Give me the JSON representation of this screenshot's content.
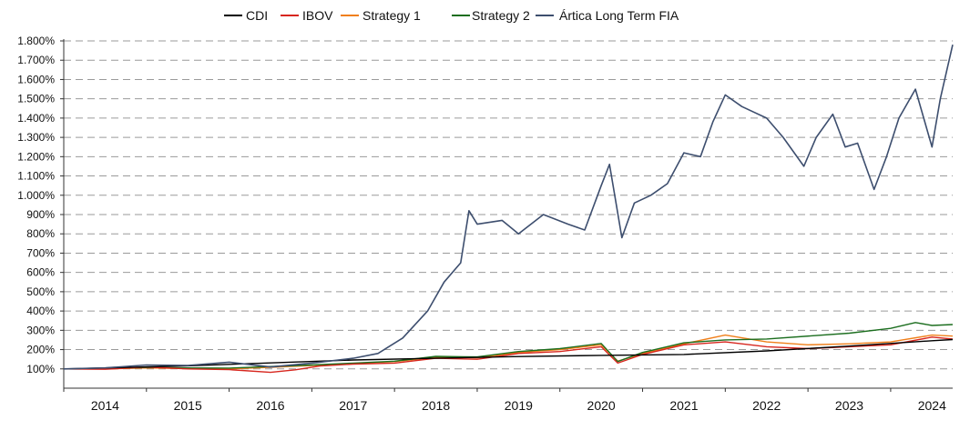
{
  "legend": {
    "items": [
      {
        "label": "CDI",
        "color": "#000000"
      },
      {
        "label": "IBOV",
        "color": "#d7261e"
      },
      {
        "label": "Strategy 1",
        "color": "#f07f1a"
      },
      {
        "label": "Strategy 2",
        "color": "#1c6e1f"
      },
      {
        "label": "Ártica Long Term FIA",
        "color": "#3d4e6e"
      }
    ]
  },
  "chart_data": {
    "type": "line",
    "title": "",
    "xlabel": "",
    "ylabel": "",
    "ylim": [
      0,
      1800
    ],
    "y_ticks": [
      "1.800%",
      "1.700%",
      "1.600%",
      "1.500%",
      "1.400%",
      "1.300%",
      "1.200%",
      "1.100%",
      "1.000%",
      "900%",
      "800%",
      "700%",
      "600%",
      "500%",
      "400%",
      "300%",
      "200%",
      "100%"
    ],
    "x_ticks": [
      "2014",
      "2015",
      "2016",
      "2017",
      "2018",
      "2019",
      "2020",
      "2021",
      "2022",
      "2023",
      "2024"
    ],
    "xlim": [
      2013.5,
      2024.25
    ],
    "grid": "horizontal dashed",
    "legend_position": "top",
    "series": [
      {
        "name": "CDI",
        "color": "#000000",
        "x": [
          2013.5,
          2014.0,
          2015.0,
          2016.0,
          2017.0,
          2018.0,
          2019.0,
          2020.0,
          2021.0,
          2022.0,
          2023.0,
          2024.0,
          2024.25
        ],
        "y": [
          100,
          105,
          116,
          131,
          146,
          155,
          164,
          170,
          175,
          193,
          218,
          246,
          252
        ]
      },
      {
        "name": "IBOV",
        "color": "#d7261e",
        "x": [
          2013.5,
          2014.0,
          2014.5,
          2015.0,
          2015.5,
          2016.0,
          2016.3,
          2016.6,
          2017.0,
          2017.5,
          2018.0,
          2018.5,
          2019.0,
          2019.5,
          2020.0,
          2020.2,
          2020.5,
          2021.0,
          2021.5,
          2022.0,
          2022.5,
          2023.0,
          2023.5,
          2024.0,
          2024.25
        ],
        "y": [
          100,
          98,
          110,
          100,
          96,
          82,
          95,
          115,
          125,
          130,
          155,
          150,
          180,
          190,
          215,
          130,
          175,
          225,
          240,
          215,
          205,
          215,
          225,
          265,
          255
        ]
      },
      {
        "name": "Strategy 1",
        "color": "#f07f1a",
        "x": [
          2013.5,
          2014.0,
          2014.5,
          2015.0,
          2015.5,
          2016.0,
          2016.5,
          2017.0,
          2017.5,
          2018.0,
          2018.5,
          2019.0,
          2019.5,
          2020.0,
          2020.2,
          2020.5,
          2021.0,
          2021.5,
          2022.0,
          2022.5,
          2023.0,
          2023.5,
          2024.0,
          2024.25
        ],
        "y": [
          100,
          100,
          105,
          102,
          100,
          108,
          118,
          128,
          138,
          160,
          158,
          185,
          200,
          225,
          140,
          180,
          230,
          275,
          240,
          225,
          230,
          240,
          275,
          270
        ]
      },
      {
        "name": "Strategy 2",
        "color": "#1c6e1f",
        "x": [
          2013.5,
          2014.0,
          2014.5,
          2015.0,
          2015.5,
          2016.0,
          2016.5,
          2017.0,
          2017.5,
          2018.0,
          2018.5,
          2019.0,
          2019.5,
          2020.0,
          2020.2,
          2020.5,
          2021.0,
          2021.5,
          2022.0,
          2023.0,
          2023.5,
          2023.8,
          2024.0,
          2024.25
        ],
        "y": [
          100,
          102,
          108,
          105,
          104,
          112,
          120,
          130,
          140,
          165,
          162,
          190,
          205,
          232,
          138,
          185,
          235,
          250,
          255,
          285,
          310,
          340,
          325,
          330
        ]
      },
      {
        "name": "Ártica Long Term FIA",
        "color": "#3d4e6e",
        "x": [
          2013.5,
          2014.0,
          2014.5,
          2015.0,
          2015.5,
          2016.0,
          2016.5,
          2017.0,
          2017.3,
          2017.6,
          2017.9,
          2018.1,
          2018.3,
          2018.4,
          2018.5,
          2018.8,
          2019.0,
          2019.3,
          2019.6,
          2019.8,
          2020.0,
          2020.1,
          2020.25,
          2020.4,
          2020.6,
          2020.8,
          2021.0,
          2021.2,
          2021.35,
          2021.5,
          2021.7,
          2022.0,
          2022.2,
          2022.45,
          2022.6,
          2022.8,
          2022.95,
          2023.1,
          2023.3,
          2023.45,
          2023.6,
          2023.8,
          2023.9,
          2024.0,
          2024.1,
          2024.25
        ],
        "y": [
          100,
          105,
          120,
          118,
          135,
          110,
          130,
          155,
          180,
          260,
          400,
          550,
          650,
          920,
          850,
          870,
          800,
          900,
          850,
          820,
          1050,
          1160,
          780,
          960,
          1000,
          1060,
          1220,
          1200,
          1380,
          1520,
          1460,
          1400,
          1300,
          1150,
          1300,
          1420,
          1250,
          1270,
          1030,
          1200,
          1400,
          1550,
          1400,
          1250,
          1500,
          1780
        ]
      }
    ]
  }
}
